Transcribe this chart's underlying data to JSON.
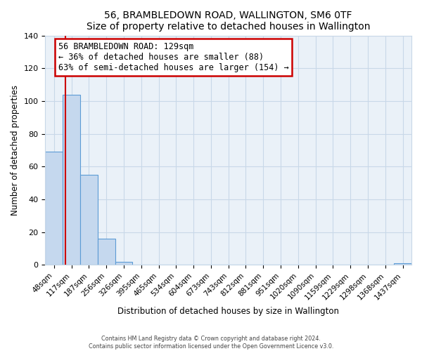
{
  "title": "56, BRAMBLEDOWN ROAD, WALLINGTON, SM6 0TF",
  "subtitle": "Size of property relative to detached houses in Wallington",
  "xlabel": "Distribution of detached houses by size in Wallington",
  "ylabel": "Number of detached properties",
  "bar_labels": [
    "48sqm",
    "117sqm",
    "187sqm",
    "256sqm",
    "326sqm",
    "395sqm",
    "465sqm",
    "534sqm",
    "604sqm",
    "673sqm",
    "743sqm",
    "812sqm",
    "881sqm",
    "951sqm",
    "1020sqm",
    "1090sqm",
    "1159sqm",
    "1229sqm",
    "1298sqm",
    "1368sqm",
    "1437sqm"
  ],
  "bar_values": [
    69,
    104,
    55,
    16,
    2,
    0,
    0,
    0,
    0,
    0,
    0,
    0,
    0,
    0,
    0,
    0,
    0,
    0,
    0,
    0,
    1
  ],
  "bar_color": "#c5d8ee",
  "bar_edge_color": "#5b9bd5",
  "annotation_text": "56 BRAMBLEDOWN ROAD: 129sqm\n← 36% of detached houses are smaller (88)\n63% of semi-detached houses are larger (154) →",
  "annotation_box_color": "#ffffff",
  "annotation_box_edge": "#cc0000",
  "ylim": [
    0,
    140
  ],
  "yticks": [
    0,
    20,
    40,
    60,
    80,
    100,
    120,
    140
  ],
  "footer_line1": "Contains HM Land Registry data © Crown copyright and database right 2024.",
  "footer_line2": "Contains public sector information licensed under the Open Government Licence v3.0.",
  "bg_color": "#ffffff",
  "grid_color": "#c8d8e8"
}
